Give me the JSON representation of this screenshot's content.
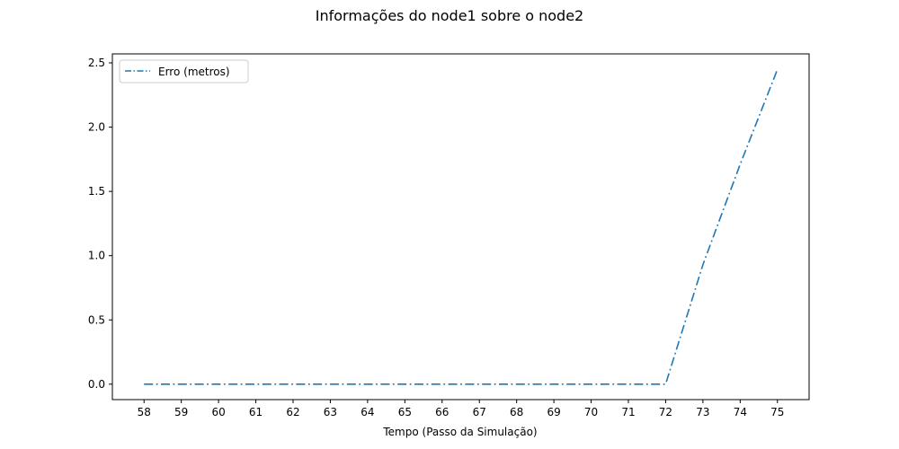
{
  "chart_data": {
    "type": "line",
    "title": "Informações do node1 sobre o node2",
    "xlabel": "Tempo (Passo da Simulação)",
    "ylabel": "",
    "x": [
      58,
      59,
      60,
      61,
      62,
      63,
      64,
      65,
      66,
      67,
      68,
      69,
      70,
      71,
      72,
      73,
      74,
      75
    ],
    "series": [
      {
        "name": "Erro (metros)",
        "values": [
          0,
          0,
          0,
          0,
          0,
          0,
          0,
          0,
          0,
          0,
          0,
          0,
          0,
          0,
          0,
          0.93,
          1.71,
          2.45
        ],
        "color": "#1f77b4",
        "linestyle": "dashdot"
      }
    ],
    "xlim": [
      57.15,
      75.85
    ],
    "ylim": [
      -0.12,
      2.57
    ],
    "xticks": [
      58,
      59,
      60,
      61,
      62,
      63,
      64,
      65,
      66,
      67,
      68,
      69,
      70,
      71,
      72,
      73,
      74,
      75
    ],
    "yticks": [
      0.0,
      0.5,
      1.0,
      1.5,
      2.0,
      2.5
    ],
    "ytick_labels": [
      "0.0",
      "0.5",
      "1.0",
      "1.5",
      "2.0",
      "2.5"
    ],
    "grid": false,
    "legend_position": "upper-left"
  }
}
